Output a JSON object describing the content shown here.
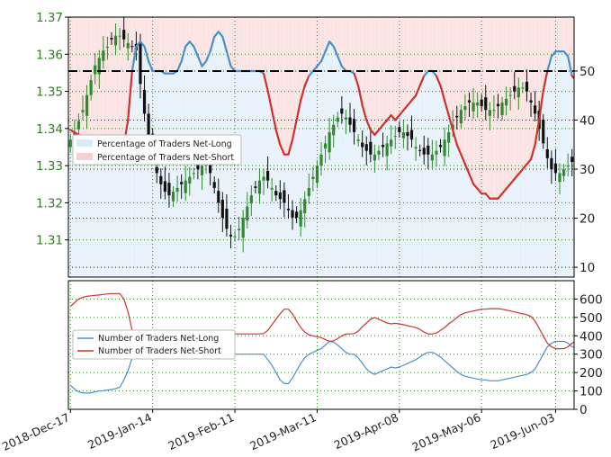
{
  "colors": {
    "candle_up": "#2e8b2e",
    "candle_down": "#111111",
    "net_long": "#4a90c8",
    "net_short": "#d0312d",
    "net_short_dark": "#b22222",
    "shade_long": "#d9eaf7",
    "shade_short": "#f8d0d0",
    "reference_line": "#000000",
    "grid": "#2e7d1f"
  },
  "chart_data": [
    {
      "type": "candlestick+line",
      "panel": "top",
      "x_tick_labels": [
        "2018-Dec-17",
        "2019-Jan-14",
        "2019-Feb-11",
        "2019-Mar-11",
        "2019-Apr-08",
        "2019-May-06",
        "2019-Jun-03"
      ],
      "y_left_ticks": [
        "1.31",
        "1.32",
        "1.33",
        "1.34",
        "1.35",
        "1.36",
        "1.37"
      ],
      "y_left_range": [
        1.3,
        1.37
      ],
      "y_right_ticks": [
        "10",
        "20",
        "30",
        "40",
        "50"
      ],
      "y_right_range": [
        8,
        61
      ],
      "reference_line_value": 50,
      "grid": true,
      "legend_position": "center-left",
      "legend": [
        {
          "label": "Percentage of Traders Net-Long",
          "color_key": "shade_long"
        },
        {
          "label": "Percentage of Traders Net-Short",
          "color_key": "shade_short"
        }
      ],
      "price_close": [
        1.337,
        1.339,
        1.342,
        1.345,
        1.349,
        1.353,
        1.357,
        1.359,
        1.361,
        1.362,
        1.364,
        1.365,
        1.365,
        1.364,
        1.363,
        1.362,
        1.361,
        1.352,
        1.344,
        1.337,
        1.332,
        1.328,
        1.325,
        1.323,
        1.322,
        1.323,
        1.324,
        1.325,
        1.326,
        1.327,
        1.328,
        1.329,
        1.33,
        1.331,
        1.328,
        1.324,
        1.32,
        1.316,
        1.313,
        1.311,
        1.311,
        1.313,
        1.316,
        1.319,
        1.322,
        1.324,
        1.326,
        1.327,
        1.326,
        1.324,
        1.322,
        1.321,
        1.32,
        1.318,
        1.316,
        1.316,
        1.318,
        1.321,
        1.324,
        1.327,
        1.33,
        1.333,
        1.336,
        1.339,
        1.341,
        1.343,
        1.344,
        1.343,
        1.341,
        1.339,
        1.337,
        1.335,
        1.334,
        1.333,
        1.333,
        1.334,
        1.335,
        1.336,
        1.337,
        1.338,
        1.339,
        1.339,
        1.338,
        1.337,
        1.335,
        1.334,
        1.333,
        1.333,
        1.333,
        1.334,
        1.335,
        1.337,
        1.339,
        1.341,
        1.343,
        1.345,
        1.346,
        1.347,
        1.347,
        1.347,
        1.346,
        1.345,
        1.345,
        1.345,
        1.346,
        1.347,
        1.348,
        1.349,
        1.35,
        1.351,
        1.351,
        1.35,
        1.347,
        1.344,
        1.34,
        1.336,
        1.332,
        1.329,
        1.328,
        1.328,
        1.329,
        1.33,
        1.331
      ],
      "net_long_pct": [
        38.0,
        37.5,
        37.0,
        36.5,
        36.0,
        35.5,
        35.0,
        34.5,
        34.0,
        33.5,
        33.0,
        33.0,
        33.0,
        35.0,
        40.0,
        50.0,
        55.0,
        56.0,
        55.0,
        52.0,
        50.0,
        50.0,
        50.0,
        49.5,
        49.5,
        49.5,
        50.0,
        52.0,
        55.0,
        56.0,
        55.0,
        53.0,
        51.0,
        52.0,
        54.0,
        57.0,
        58.0,
        57.0,
        54.0,
        51.0,
        50.0,
        50.0,
        50.0,
        50.0,
        50.0,
        50.0,
        50.0,
        49.5,
        46.0,
        42.0,
        38.0,
        35.0,
        33.0,
        33.0,
        36.0,
        40.0,
        44.0,
        47.0,
        49.0,
        50.0,
        51.0,
        52.0,
        54.0,
        56.0,
        55.0,
        53.0,
        51.0,
        50.0,
        50.0,
        49.5,
        47.0,
        43.0,
        40.0,
        38.0,
        37.0,
        38.0,
        39.0,
        40.0,
        41.0,
        40.0,
        41.0,
        42.0,
        43.0,
        44.0,
        45.0,
        47.0,
        49.0,
        50.0,
        50.0,
        49.0,
        47.0,
        44.0,
        41.0,
        38.0,
        35.0,
        33.0,
        31.0,
        29.0,
        27.0,
        26.0,
        25.0,
        25.0,
        24.0,
        24.0,
        24.0,
        25.0,
        26.0,
        27.0,
        28.0,
        29.0,
        30.0,
        31.0,
        32.0,
        35.0,
        40.0,
        46.0,
        50.0,
        53.0,
        54.0,
        54.0,
        54.0,
        53.0,
        49.0,
        48.0,
        48.0
      ]
    },
    {
      "type": "line",
      "panel": "bottom",
      "x_tick_labels": [
        "2018-Dec-17",
        "2019-Jan-14",
        "2019-Feb-11",
        "2019-Mar-11",
        "2019-Apr-08",
        "2019-May-06",
        "2019-Jun-03"
      ],
      "y_ticks": [
        "0",
        "100",
        "200",
        "300",
        "400",
        "500",
        "600"
      ],
      "ylim": [
        0,
        700
      ],
      "legend_position": "center-left",
      "series": [
        {
          "name": "Number of Traders Net-Long",
          "color_key": "net_long",
          "values": [
            130,
            110,
            95,
            90,
            88,
            90,
            95,
            100,
            102,
            105,
            108,
            112,
            120,
            160,
            210,
            280,
            330,
            340,
            330,
            300,
            290,
            300,
            300,
            300,
            295,
            300,
            310,
            320,
            330,
            340,
            330,
            310,
            290,
            310,
            330,
            360,
            370,
            360,
            340,
            320,
            300,
            300,
            300,
            300,
            300,
            300,
            300,
            300,
            270,
            240,
            200,
            160,
            140,
            140,
            170,
            210,
            250,
            280,
            300,
            310,
            320,
            330,
            350,
            370,
            365,
            350,
            330,
            310,
            300,
            300,
            280,
            250,
            220,
            200,
            190,
            200,
            210,
            220,
            230,
            225,
            230,
            240,
            250,
            260,
            270,
            285,
            300,
            310,
            310,
            300,
            285,
            265,
            245,
            225,
            205,
            190,
            180,
            175,
            170,
            165,
            160,
            160,
            155,
            155,
            155,
            160,
            165,
            170,
            175,
            180,
            185,
            190,
            200,
            220,
            260,
            300,
            340,
            360,
            370,
            370,
            370,
            360,
            340,
            335,
            335
          ]
        },
        {
          "name": "Number of Traders Net-Short",
          "color_key": "net_short",
          "values": [
            560,
            580,
            600,
            610,
            615,
            618,
            620,
            622,
            625,
            628,
            630,
            630,
            630,
            600,
            530,
            430,
            380,
            370,
            380,
            400,
            405,
            400,
            400,
            402,
            405,
            405,
            400,
            390,
            380,
            370,
            380,
            395,
            410,
            400,
            385,
            360,
            350,
            360,
            380,
            400,
            410,
            410,
            410,
            410,
            410,
            410,
            410,
            412,
            430,
            460,
            490,
            520,
            545,
            545,
            520,
            480,
            445,
            420,
            405,
            400,
            395,
            390,
            380,
            370,
            372,
            385,
            400,
            410,
            410,
            412,
            425,
            450,
            470,
            490,
            500,
            490,
            480,
            470,
            465,
            468,
            465,
            460,
            455,
            450,
            445,
            435,
            420,
            410,
            410,
            415,
            430,
            445,
            465,
            480,
            500,
            515,
            525,
            530,
            535,
            540,
            545,
            545,
            548,
            548,
            548,
            545,
            540,
            535,
            530,
            525,
            520,
            515,
            505,
            480,
            440,
            400,
            360,
            340,
            330,
            330,
            330,
            340,
            360,
            370,
            370
          ]
        }
      ]
    }
  ]
}
